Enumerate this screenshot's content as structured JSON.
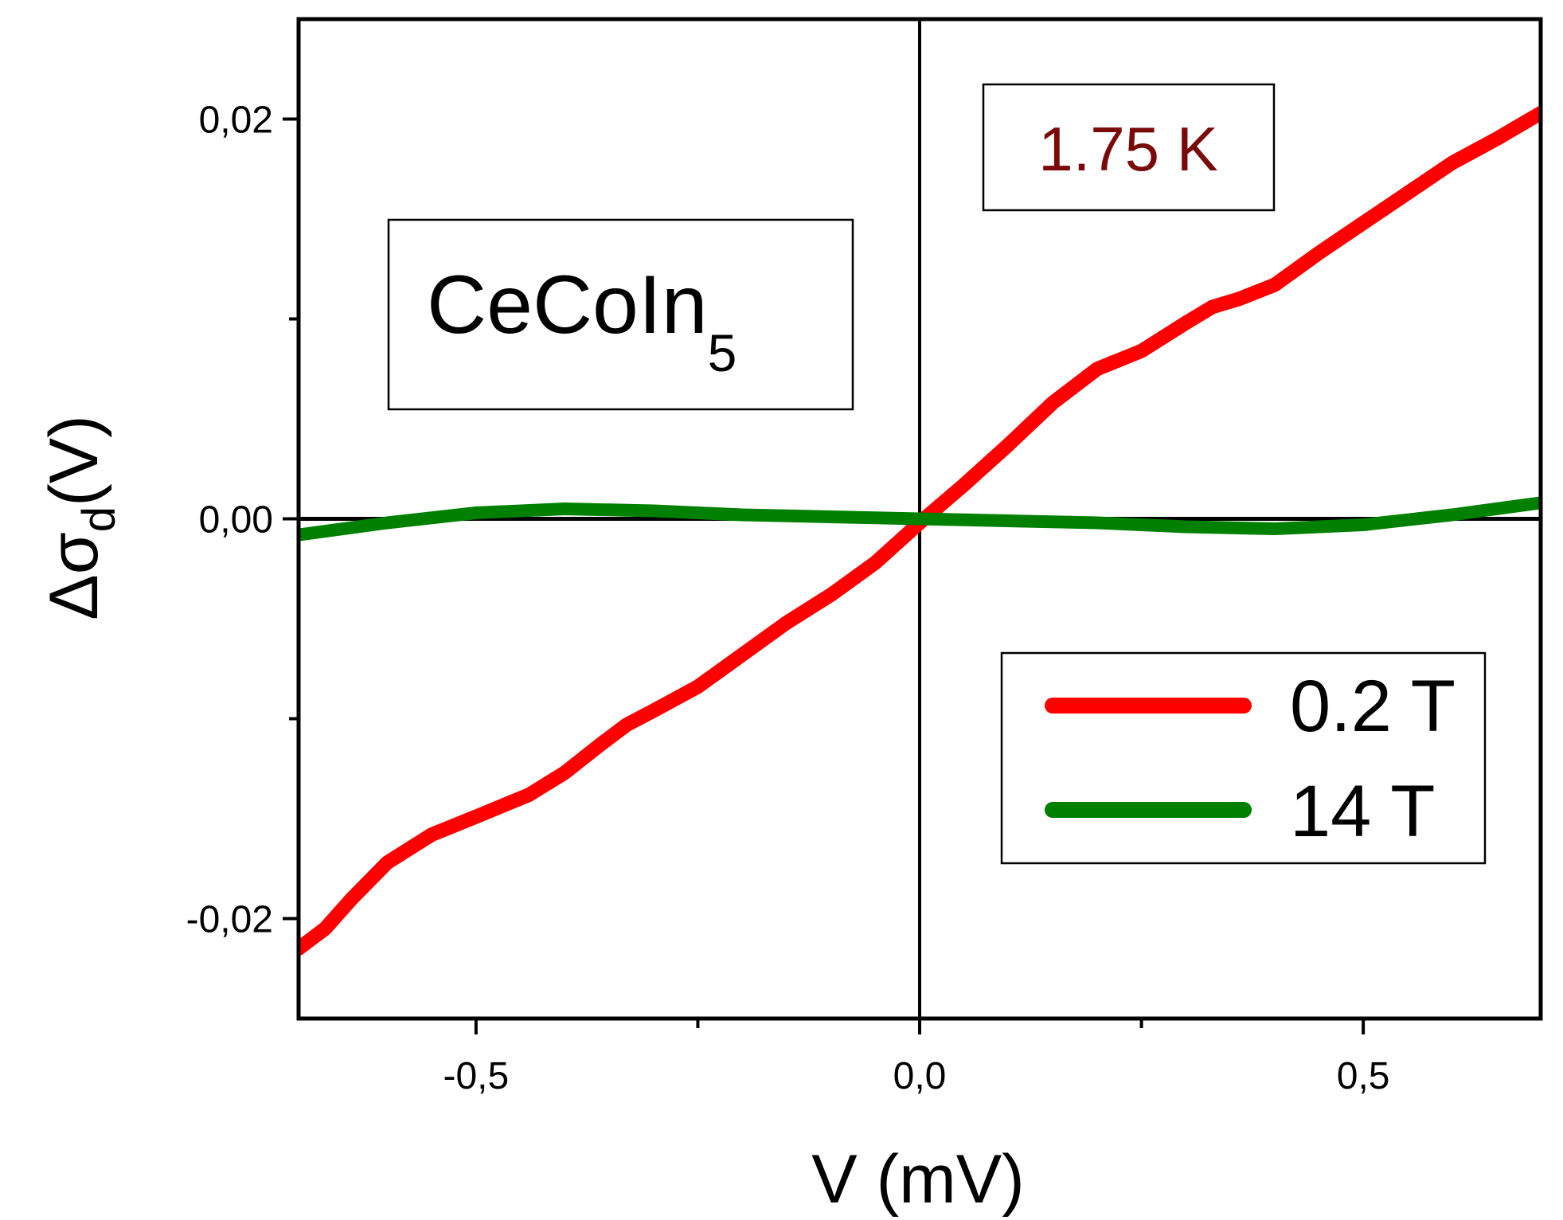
{
  "chart_data": {
    "type": "line",
    "title": "",
    "xlabel": "V (mV)",
    "ylabel_symbol": "Δσ",
    "ylabel_subscript": "d",
    "ylabel_suffix": "(V)",
    "xlim": [
      -0.7,
      0.7
    ],
    "ylim": [
      -0.025,
      0.025
    ],
    "x_ticks": [
      -0.5,
      0.0,
      0.5
    ],
    "x_tick_labels": [
      "-0,5",
      "0,0",
      "0,5"
    ],
    "x_minor_ticks": [
      -0.25,
      0.25
    ],
    "y_ticks": [
      -0.02,
      0.0,
      0.02
    ],
    "y_tick_labels": [
      "-0,02",
      "0,00",
      "0,02"
    ],
    "y_minor_ticks": [
      -0.01,
      0.01
    ],
    "annotations": {
      "material": "CeCoIn",
      "material_subscript": "5",
      "temperature": "1.75 K"
    },
    "legend": {
      "placement": "bottom-right"
    },
    "series": [
      {
        "name": "0.2 T",
        "color": "#ff0000",
        "x": [
          -0.7,
          -0.67,
          -0.64,
          -0.6,
          -0.55,
          -0.5,
          -0.44,
          -0.4,
          -0.36,
          -0.33,
          -0.3,
          -0.25,
          -0.2,
          -0.15,
          -0.1,
          -0.05,
          0.0,
          0.05,
          0.1,
          0.15,
          0.2,
          0.25,
          0.3,
          0.33,
          0.36,
          0.4,
          0.45,
          0.5,
          0.55,
          0.6,
          0.65,
          0.7
        ],
        "y": [
          -0.0215,
          -0.0205,
          -0.019,
          -0.0172,
          -0.0158,
          -0.0149,
          -0.0138,
          -0.0127,
          -0.0113,
          -0.0103,
          -0.0096,
          -0.0084,
          -0.0068,
          -0.0052,
          -0.0038,
          -0.0022,
          -0.0002,
          0.0017,
          0.0037,
          0.0058,
          0.0075,
          0.0084,
          0.0098,
          0.0106,
          0.011,
          0.0117,
          0.0133,
          0.0148,
          0.0163,
          0.0178,
          0.019,
          0.0203
        ]
      },
      {
        "name": "14 T",
        "color": "#008000",
        "x": [
          -0.7,
          -0.6,
          -0.5,
          -0.4,
          -0.3,
          -0.2,
          -0.1,
          0.0,
          0.1,
          0.2,
          0.3,
          0.4,
          0.5,
          0.6,
          0.7
        ],
        "y": [
          -0.0008,
          -0.0002,
          0.0003,
          0.0005,
          0.0004,
          0.0002,
          0.0001,
          0.0,
          -0.0001,
          -0.0002,
          -0.0004,
          -0.0005,
          -0.0003,
          0.0002,
          0.0008
        ]
      }
    ]
  }
}
